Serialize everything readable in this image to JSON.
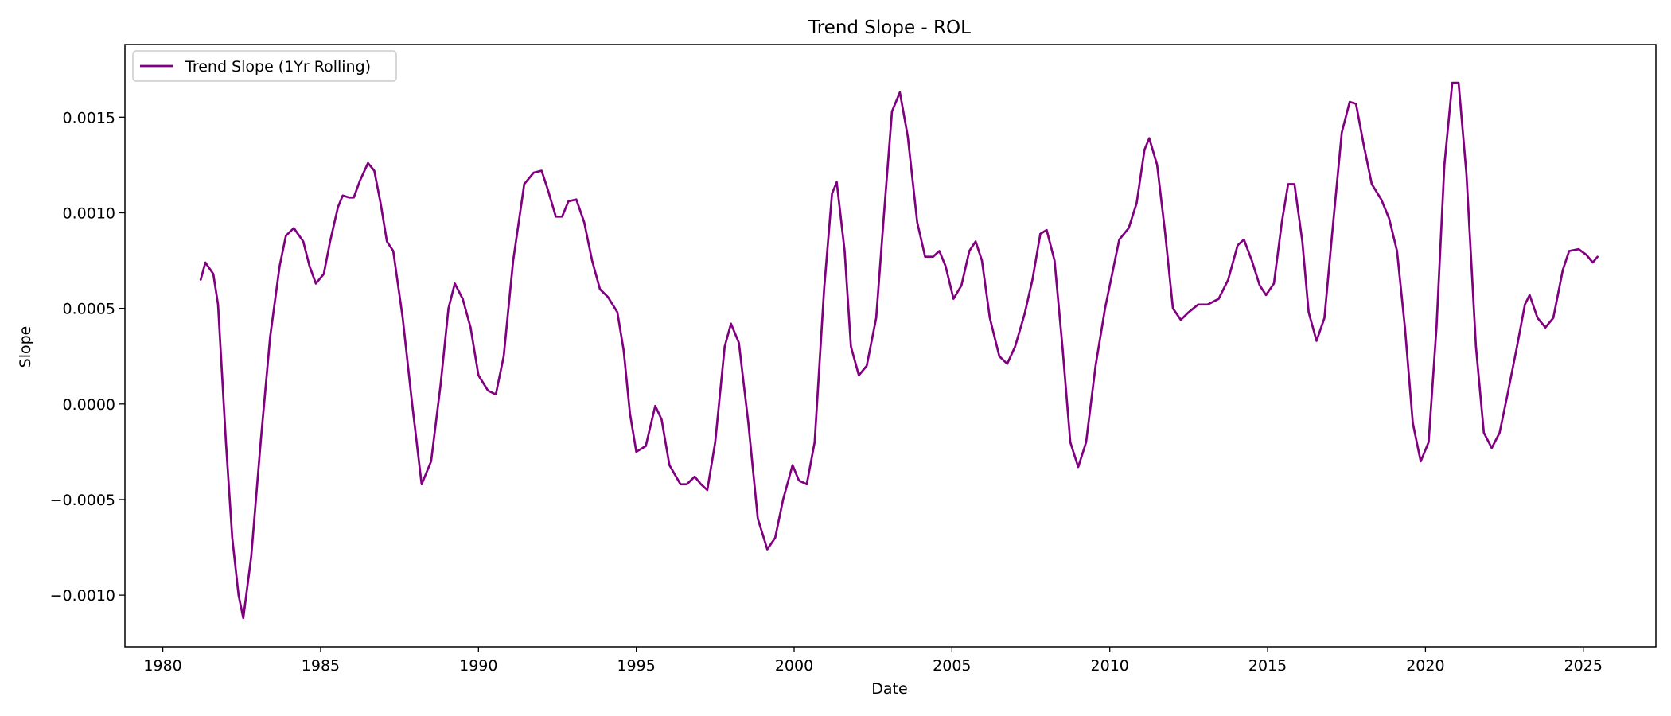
{
  "chart_data": {
    "type": "line",
    "title": "Trend Slope - ROL",
    "xlabel": "Date",
    "ylabel": "Slope",
    "xlim": [
      1978.8,
      2027.3
    ],
    "ylim": [
      -0.00127,
      0.00188
    ],
    "x_ticks": [
      1980,
      1985,
      1990,
      1995,
      2000,
      2005,
      2010,
      2015,
      2020,
      2025
    ],
    "x_tick_labels": [
      "1980",
      "1985",
      "1990",
      "1995",
      "2000",
      "2005",
      "2010",
      "2015",
      "2020",
      "2025"
    ],
    "y_ticks": [
      -0.001,
      -0.0005,
      0.0,
      0.0005,
      0.001,
      0.0015
    ],
    "y_tick_labels": [
      "−0.0010",
      "−0.0005",
      "0.0000",
      "0.0005",
      "0.0010",
      "0.0015"
    ],
    "grid": false,
    "legend_position": "top-left",
    "colors": {
      "series": "#800080"
    },
    "series": [
      {
        "name": "Trend Slope (1Yr Rolling)",
        "points": [
          [
            1981.2,
            0.00065
          ],
          [
            1981.35,
            0.00074
          ],
          [
            1981.6,
            0.00068
          ],
          [
            1981.75,
            0.00052
          ],
          [
            1982.0,
            -0.0002
          ],
          [
            1982.2,
            -0.0007
          ],
          [
            1982.4,
            -0.001
          ],
          [
            1982.55,
            -0.00112
          ],
          [
            1982.8,
            -0.0008
          ],
          [
            1983.1,
            -0.0002
          ],
          [
            1983.4,
            0.00035
          ],
          [
            1983.7,
            0.00072
          ],
          [
            1983.9,
            0.00088
          ],
          [
            1984.15,
            0.00092
          ],
          [
            1984.45,
            0.00085
          ],
          [
            1984.65,
            0.00072
          ],
          [
            1984.85,
            0.00063
          ],
          [
            1985.1,
            0.00068
          ],
          [
            1985.3,
            0.00085
          ],
          [
            1985.55,
            0.00103
          ],
          [
            1985.7,
            0.00109
          ],
          [
            1985.9,
            0.00108
          ],
          [
            1986.05,
            0.00108
          ],
          [
            1986.25,
            0.00117
          ],
          [
            1986.5,
            0.00126
          ],
          [
            1986.7,
            0.00122
          ],
          [
            1986.9,
            0.00105
          ],
          [
            1987.1,
            0.00085
          ],
          [
            1987.3,
            0.0008
          ],
          [
            1987.6,
            0.00045
          ],
          [
            1987.9,
            0.0
          ],
          [
            1988.2,
            -0.00042
          ],
          [
            1988.5,
            -0.0003
          ],
          [
            1988.8,
            0.0001
          ],
          [
            1989.05,
            0.0005
          ],
          [
            1989.25,
            0.00063
          ],
          [
            1989.5,
            0.00055
          ],
          [
            1989.75,
            0.0004
          ],
          [
            1990.0,
            0.00015
          ],
          [
            1990.3,
            7e-05
          ],
          [
            1990.55,
            5e-05
          ],
          [
            1990.8,
            0.00025
          ],
          [
            1991.1,
            0.00075
          ],
          [
            1991.45,
            0.00115
          ],
          [
            1991.75,
            0.00121
          ],
          [
            1992.0,
            0.00122
          ],
          [
            1992.2,
            0.00112
          ],
          [
            1992.45,
            0.00098
          ],
          [
            1992.65,
            0.00098
          ],
          [
            1992.85,
            0.00106
          ],
          [
            1993.1,
            0.00107
          ],
          [
            1993.35,
            0.00095
          ],
          [
            1993.6,
            0.00075
          ],
          [
            1993.85,
            0.0006
          ],
          [
            1994.1,
            0.00056
          ],
          [
            1994.4,
            0.00048
          ],
          [
            1994.6,
            0.00028
          ],
          [
            1994.8,
            -5e-05
          ],
          [
            1995.0,
            -0.00025
          ],
          [
            1995.3,
            -0.00022
          ],
          [
            1995.6,
            -1e-05
          ],
          [
            1995.8,
            -8e-05
          ],
          [
            1996.05,
            -0.00032
          ],
          [
            1996.4,
            -0.00042
          ],
          [
            1996.6,
            -0.00042
          ],
          [
            1996.85,
            -0.00038
          ],
          [
            1997.05,
            -0.00042
          ],
          [
            1997.25,
            -0.00045
          ],
          [
            1997.5,
            -0.0002
          ],
          [
            1997.8,
            0.0003
          ],
          [
            1998.0,
            0.00042
          ],
          [
            1998.25,
            0.00032
          ],
          [
            1998.55,
            -0.0001
          ],
          [
            1998.85,
            -0.0006
          ],
          [
            1999.15,
            -0.00076
          ],
          [
            1999.4,
            -0.0007
          ],
          [
            1999.65,
            -0.0005
          ],
          [
            1999.95,
            -0.00032
          ],
          [
            2000.15,
            -0.0004
          ],
          [
            2000.4,
            -0.00042
          ],
          [
            2000.65,
            -0.0002
          ],
          [
            2000.95,
            0.0006
          ],
          [
            2001.2,
            0.0011
          ],
          [
            2001.35,
            0.00116
          ],
          [
            2001.6,
            0.0008
          ],
          [
            2001.8,
            0.0003
          ],
          [
            2002.05,
            0.00015
          ],
          [
            2002.3,
            0.0002
          ],
          [
            2002.6,
            0.00045
          ],
          [
            2002.85,
            0.001
          ],
          [
            2003.1,
            0.00153
          ],
          [
            2003.35,
            0.00163
          ],
          [
            2003.6,
            0.0014
          ],
          [
            2003.9,
            0.00095
          ],
          [
            2004.15,
            0.00077
          ],
          [
            2004.4,
            0.00077
          ],
          [
            2004.6,
            0.0008
          ],
          [
            2004.8,
            0.00072
          ],
          [
            2005.05,
            0.00055
          ],
          [
            2005.3,
            0.00062
          ],
          [
            2005.55,
            0.0008
          ],
          [
            2005.75,
            0.00085
          ],
          [
            2005.95,
            0.00075
          ],
          [
            2006.2,
            0.00045
          ],
          [
            2006.5,
            0.00025
          ],
          [
            2006.75,
            0.00021
          ],
          [
            2007.0,
            0.0003
          ],
          [
            2007.3,
            0.00047
          ],
          [
            2007.55,
            0.00065
          ],
          [
            2007.8,
            0.00089
          ],
          [
            2008.0,
            0.00091
          ],
          [
            2008.25,
            0.00075
          ],
          [
            2008.5,
            0.0003
          ],
          [
            2008.75,
            -0.0002
          ],
          [
            2009.0,
            -0.00033
          ],
          [
            2009.25,
            -0.0002
          ],
          [
            2009.55,
            0.0002
          ],
          [
            2009.85,
            0.0005
          ],
          [
            2010.1,
            0.0007
          ],
          [
            2010.3,
            0.00086
          ],
          [
            2010.6,
            0.00092
          ],
          [
            2010.85,
            0.00105
          ],
          [
            2011.1,
            0.00133
          ],
          [
            2011.25,
            0.00139
          ],
          [
            2011.5,
            0.00125
          ],
          [
            2011.75,
            0.0009
          ],
          [
            2012.0,
            0.0005
          ],
          [
            2012.25,
            0.00044
          ],
          [
            2012.5,
            0.00048
          ],
          [
            2012.8,
            0.00052
          ],
          [
            2013.1,
            0.00052
          ],
          [
            2013.45,
            0.00055
          ],
          [
            2013.75,
            0.00065
          ],
          [
            2014.05,
            0.00083
          ],
          [
            2014.25,
            0.00086
          ],
          [
            2014.5,
            0.00075
          ],
          [
            2014.75,
            0.00062
          ],
          [
            2014.95,
            0.00057
          ],
          [
            2015.2,
            0.00063
          ],
          [
            2015.45,
            0.00095
          ],
          [
            2015.65,
            0.00115
          ],
          [
            2015.85,
            0.00115
          ],
          [
            2016.1,
            0.00085
          ],
          [
            2016.3,
            0.00048
          ],
          [
            2016.55,
            0.00033
          ],
          [
            2016.8,
            0.00045
          ],
          [
            2017.05,
            0.0009
          ],
          [
            2017.35,
            0.00142
          ],
          [
            2017.6,
            0.00158
          ],
          [
            2017.8,
            0.00157
          ],
          [
            2018.05,
            0.00135
          ],
          [
            2018.3,
            0.00115
          ],
          [
            2018.6,
            0.00107
          ],
          [
            2018.85,
            0.00097
          ],
          [
            2019.1,
            0.0008
          ],
          [
            2019.35,
            0.0004
          ],
          [
            2019.6,
            -0.0001
          ],
          [
            2019.85,
            -0.0003
          ],
          [
            2020.1,
            -0.0002
          ],
          [
            2020.35,
            0.0004
          ],
          [
            2020.6,
            0.00125
          ],
          [
            2020.85,
            0.00168
          ],
          [
            2021.05,
            0.00168
          ],
          [
            2021.3,
            0.0012
          ],
          [
            2021.6,
            0.0003
          ],
          [
            2021.85,
            -0.00015
          ],
          [
            2022.1,
            -0.00023
          ],
          [
            2022.35,
            -0.00015
          ],
          [
            2022.6,
            5e-05
          ],
          [
            2022.9,
            0.0003
          ],
          [
            2023.15,
            0.00052
          ],
          [
            2023.3,
            0.00057
          ],
          [
            2023.55,
            0.00045
          ],
          [
            2023.8,
            0.0004
          ],
          [
            2024.05,
            0.00045
          ],
          [
            2024.35,
            0.0007
          ],
          [
            2024.55,
            0.0008
          ],
          [
            2024.85,
            0.00081
          ],
          [
            2025.1,
            0.00078
          ],
          [
            2025.3,
            0.00074
          ],
          [
            2025.45,
            0.00077
          ]
        ]
      }
    ]
  }
}
